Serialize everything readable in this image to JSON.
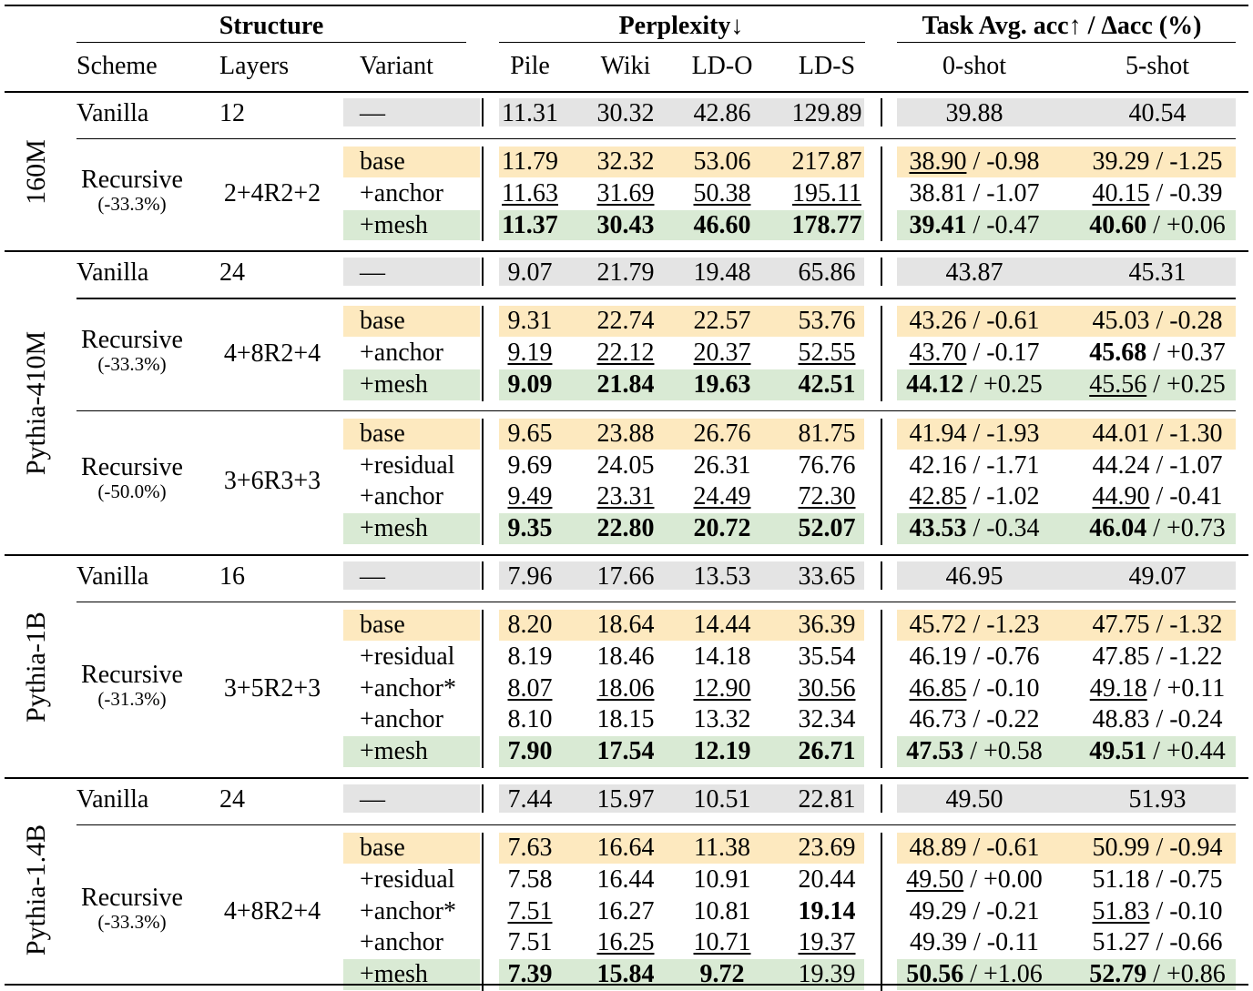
{
  "headers": {
    "structure": "Structure",
    "perplexity": "Perplexity↓",
    "task": "Task Avg. acc↑ / Δacc (%)",
    "scheme": "Scheme",
    "layers": "Layers",
    "variant": "Variant",
    "pile": "Pile",
    "wiki": "Wiki",
    "ldo": "LD-O",
    "lds": "LD-S",
    "zero_shot": "0-shot",
    "five_shot": "5-shot"
  },
  "colors": {
    "vanilla_bg": "#e4e4e4",
    "base_bg": "#fde9bf",
    "mesh_bg": "#d9ead4"
  },
  "groups": [
    {
      "model": "160M",
      "vanilla": {
        "scheme": "Vanilla",
        "layers": "12",
        "variant": "—",
        "ppl": [
          "11.31",
          "30.32",
          "42.86",
          "129.89"
        ],
        "acc": [
          "39.88",
          "40.54"
        ]
      },
      "blocks": [
        {
          "scheme": "Recursive",
          "reduction": "(-33.3%)",
          "layers": "2+4R2+2",
          "rows": [
            {
              "variant": "base",
              "style": "base",
              "ppl": [
                {
                  "v": "11.79"
                },
                {
                  "v": "32.32"
                },
                {
                  "v": "53.06"
                },
                {
                  "v": "217.87"
                }
              ],
              "acc": [
                {
                  "v": "38.90",
                  "f": "u",
                  "d": "-0.98"
                },
                {
                  "v": "39.29",
                  "d": "-1.25"
                }
              ]
            },
            {
              "variant": "+anchor",
              "style": "",
              "ppl": [
                {
                  "v": "11.63",
                  "f": "u"
                },
                {
                  "v": "31.69",
                  "f": "u"
                },
                {
                  "v": "50.38",
                  "f": "u"
                },
                {
                  "v": "195.11",
                  "f": "u"
                }
              ],
              "acc": [
                {
                  "v": "38.81",
                  "d": "-1.07"
                },
                {
                  "v": "40.15",
                  "f": "u",
                  "d": "-0.39"
                }
              ]
            },
            {
              "variant": "+mesh",
              "style": "mesh",
              "ppl": [
                {
                  "v": "11.37",
                  "f": "b"
                },
                {
                  "v": "30.43",
                  "f": "b"
                },
                {
                  "v": "46.60",
                  "f": "b"
                },
                {
                  "v": "178.77",
                  "f": "b"
                }
              ],
              "acc": [
                {
                  "v": "39.41",
                  "f": "b",
                  "d": "-0.47"
                },
                {
                  "v": "40.60",
                  "f": "b",
                  "d": "+0.06"
                }
              ]
            }
          ]
        }
      ]
    },
    {
      "model": "Pythia-410M",
      "vanilla": {
        "scheme": "Vanilla",
        "layers": "24",
        "variant": "—",
        "ppl": [
          "9.07",
          "21.79",
          "19.48",
          "65.86"
        ],
        "acc": [
          "43.87",
          "45.31"
        ]
      },
      "blocks": [
        {
          "scheme": "Recursive",
          "reduction": "(-33.3%)",
          "layers": "4+8R2+4",
          "rows": [
            {
              "variant": "base",
              "style": "base",
              "ppl": [
                {
                  "v": "9.31"
                },
                {
                  "v": "22.74"
                },
                {
                  "v": "22.57"
                },
                {
                  "v": "53.76"
                }
              ],
              "acc": [
                {
                  "v": "43.26",
                  "d": "-0.61"
                },
                {
                  "v": "45.03",
                  "d": "-0.28"
                }
              ]
            },
            {
              "variant": "+anchor",
              "style": "",
              "ppl": [
                {
                  "v": "9.19",
                  "f": "u"
                },
                {
                  "v": "22.12",
                  "f": "u"
                },
                {
                  "v": "20.37",
                  "f": "u"
                },
                {
                  "v": "52.55",
                  "f": "u"
                }
              ],
              "acc": [
                {
                  "v": "43.70",
                  "f": "u",
                  "d": "-0.17"
                },
                {
                  "v": "45.68",
                  "f": "b",
                  "d": "+0.37"
                }
              ]
            },
            {
              "variant": "+mesh",
              "style": "mesh",
              "ppl": [
                {
                  "v": "9.09",
                  "f": "b"
                },
                {
                  "v": "21.84",
                  "f": "b"
                },
                {
                  "v": "19.63",
                  "f": "b"
                },
                {
                  "v": "42.51",
                  "f": "b"
                }
              ],
              "acc": [
                {
                  "v": "44.12",
                  "f": "b",
                  "d": "+0.25"
                },
                {
                  "v": "45.56",
                  "f": "u",
                  "d": "+0.25"
                }
              ]
            }
          ]
        },
        {
          "scheme": "Recursive",
          "reduction": "(-50.0%)",
          "layers": "3+6R3+3",
          "rows": [
            {
              "variant": "base",
              "style": "base",
              "ppl": [
                {
                  "v": "9.65"
                },
                {
                  "v": "23.88"
                },
                {
                  "v": "26.76"
                },
                {
                  "v": "81.75"
                }
              ],
              "acc": [
                {
                  "v": "41.94",
                  "d": "-1.93"
                },
                {
                  "v": "44.01",
                  "d": "-1.30"
                }
              ]
            },
            {
              "variant": "+residual",
              "style": "",
              "ppl": [
                {
                  "v": "9.69"
                },
                {
                  "v": "24.05"
                },
                {
                  "v": "26.31"
                },
                {
                  "v": "76.76"
                }
              ],
              "acc": [
                {
                  "v": "42.16",
                  "d": "-1.71"
                },
                {
                  "v": "44.24",
                  "d": "-1.07"
                }
              ]
            },
            {
              "variant": "+anchor",
              "style": "",
              "ppl": [
                {
                  "v": "9.49",
                  "f": "u"
                },
                {
                  "v": "23.31",
                  "f": "u"
                },
                {
                  "v": "24.49",
                  "f": "u"
                },
                {
                  "v": "72.30",
                  "f": "u"
                }
              ],
              "acc": [
                {
                  "v": "42.85",
                  "f": "u",
                  "d": "-1.02"
                },
                {
                  "v": "44.90",
                  "f": "u",
                  "d": "-0.41"
                }
              ]
            },
            {
              "variant": "+mesh",
              "style": "mesh",
              "ppl": [
                {
                  "v": "9.35",
                  "f": "b"
                },
                {
                  "v": "22.80",
                  "f": "b"
                },
                {
                  "v": "20.72",
                  "f": "b"
                },
                {
                  "v": "52.07",
                  "f": "b"
                }
              ],
              "acc": [
                {
                  "v": "43.53",
                  "f": "b",
                  "d": "-0.34"
                },
                {
                  "v": "46.04",
                  "f": "b",
                  "d": "+0.73"
                }
              ]
            }
          ]
        }
      ]
    },
    {
      "model": "Pythia-1B",
      "vanilla": {
        "scheme": "Vanilla",
        "layers": "16",
        "variant": "—",
        "ppl": [
          "7.96",
          "17.66",
          "13.53",
          "33.65"
        ],
        "acc": [
          "46.95",
          "49.07"
        ]
      },
      "blocks": [
        {
          "scheme": "Recursive",
          "reduction": "(-31.3%)",
          "layers": "3+5R2+3",
          "rows": [
            {
              "variant": "base",
              "style": "base",
              "ppl": [
                {
                  "v": "8.20"
                },
                {
                  "v": "18.64"
                },
                {
                  "v": "14.44"
                },
                {
                  "v": "36.39"
                }
              ],
              "acc": [
                {
                  "v": "45.72",
                  "d": "-1.23"
                },
                {
                  "v": "47.75",
                  "d": "-1.32"
                }
              ]
            },
            {
              "variant": "+residual",
              "style": "",
              "ppl": [
                {
                  "v": "8.19"
                },
                {
                  "v": "18.46"
                },
                {
                  "v": "14.18"
                },
                {
                  "v": "35.54"
                }
              ],
              "acc": [
                {
                  "v": "46.19",
                  "d": "-0.76"
                },
                {
                  "v": "47.85",
                  "d": "-1.22"
                }
              ]
            },
            {
              "variant": "+anchor*",
              "style": "",
              "ppl": [
                {
                  "v": "8.07",
                  "f": "u"
                },
                {
                  "v": "18.06",
                  "f": "u"
                },
                {
                  "v": "12.90",
                  "f": "u"
                },
                {
                  "v": "30.56",
                  "f": "u"
                }
              ],
              "acc": [
                {
                  "v": "46.85",
                  "f": "u",
                  "d": "-0.10"
                },
                {
                  "v": "49.18",
                  "f": "u",
                  "d": "+0.11"
                }
              ]
            },
            {
              "variant": "+anchor",
              "style": "",
              "ppl": [
                {
                  "v": "8.10"
                },
                {
                  "v": "18.15"
                },
                {
                  "v": "13.32"
                },
                {
                  "v": "32.34"
                }
              ],
              "acc": [
                {
                  "v": "46.73",
                  "d": "-0.22"
                },
                {
                  "v": "48.83",
                  "d": "-0.24"
                }
              ]
            },
            {
              "variant": "+mesh",
              "style": "mesh",
              "ppl": [
                {
                  "v": "7.90",
                  "f": "b"
                },
                {
                  "v": "17.54",
                  "f": "b"
                },
                {
                  "v": "12.19",
                  "f": "b"
                },
                {
                  "v": "26.71",
                  "f": "b"
                }
              ],
              "acc": [
                {
                  "v": "47.53",
                  "f": "b",
                  "d": "+0.58"
                },
                {
                  "v": "49.51",
                  "f": "b",
                  "d": "+0.44"
                }
              ]
            }
          ]
        }
      ]
    },
    {
      "model": "Pythia-1.4B",
      "vanilla": {
        "scheme": "Vanilla",
        "layers": "24",
        "variant": "—",
        "ppl": [
          "7.44",
          "15.97",
          "10.51",
          "22.81"
        ],
        "acc": [
          "49.50",
          "51.93"
        ]
      },
      "blocks": [
        {
          "scheme": "Recursive",
          "reduction": "(-33.3%)",
          "layers": "4+8R2+4",
          "rows": [
            {
              "variant": "base",
              "style": "base",
              "ppl": [
                {
                  "v": "7.63"
                },
                {
                  "v": "16.64"
                },
                {
                  "v": "11.38"
                },
                {
                  "v": "23.69"
                }
              ],
              "acc": [
                {
                  "v": "48.89",
                  "d": "-0.61"
                },
                {
                  "v": "50.99",
                  "d": "-0.94"
                }
              ]
            },
            {
              "variant": "+residual",
              "style": "",
              "ppl": [
                {
                  "v": "7.58"
                },
                {
                  "v": "16.44"
                },
                {
                  "v": "10.91"
                },
                {
                  "v": "20.44"
                }
              ],
              "acc": [
                {
                  "v": "49.50",
                  "f": "u",
                  "d": "+0.00"
                },
                {
                  "v": "51.18",
                  "d": "-0.75"
                }
              ]
            },
            {
              "variant": "+anchor*",
              "style": "",
              "ppl": [
                {
                  "v": "7.51",
                  "f": "u"
                },
                {
                  "v": "16.27"
                },
                {
                  "v": "10.81"
                },
                {
                  "v": "19.14",
                  "f": "b"
                }
              ],
              "acc": [
                {
                  "v": "49.29",
                  "d": "-0.21"
                },
                {
                  "v": "51.83",
                  "f": "u",
                  "d": "-0.10"
                }
              ]
            },
            {
              "variant": "+anchor",
              "style": "",
              "ppl": [
                {
                  "v": "7.51"
                },
                {
                  "v": "16.25",
                  "f": "u"
                },
                {
                  "v": "10.71",
                  "f": "u"
                },
                {
                  "v": "19.37",
                  "f": "u"
                }
              ],
              "acc": [
                {
                  "v": "49.39",
                  "d": "-0.11"
                },
                {
                  "v": "51.27",
                  "d": "-0.66"
                }
              ]
            },
            {
              "variant": "+mesh",
              "style": "mesh",
              "ppl": [
                {
                  "v": "7.39",
                  "f": "b"
                },
                {
                  "v": "15.84",
                  "f": "b"
                },
                {
                  "v": "9.72",
                  "f": "b"
                },
                {
                  "v": "19.39"
                }
              ],
              "acc": [
                {
                  "v": "50.56",
                  "f": "b",
                  "d": "+1.06"
                },
                {
                  "v": "52.79",
                  "f": "b",
                  "d": "+0.86"
                }
              ]
            }
          ]
        }
      ]
    }
  ]
}
